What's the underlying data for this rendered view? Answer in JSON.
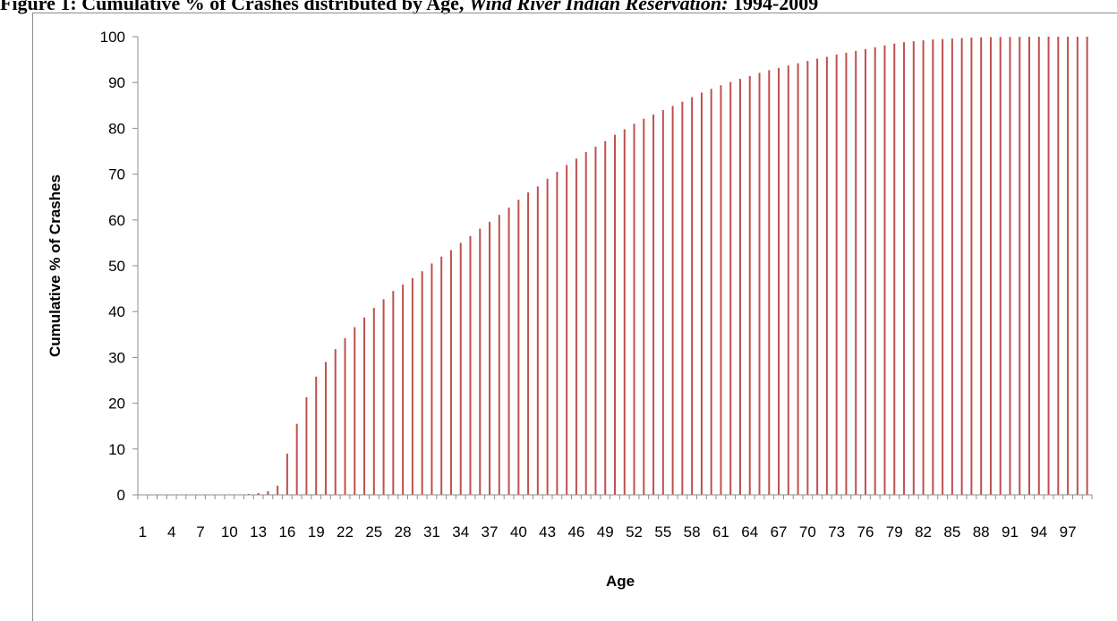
{
  "figure": {
    "title_main": "Figure 1: Cumulative % of Crashes distributed by Age, ",
    "title_italic": "Wind River Indian Reservation:",
    "title_tail": " 1994-2009"
  },
  "colors": {
    "bar": "#c0504d",
    "axis": "#8c8c8c"
  },
  "chart_data": {
    "type": "bar",
    "xlabel": "Age",
    "ylabel": "Cumulative % of Crashes",
    "ylim": [
      0,
      100
    ],
    "yticks": [
      0,
      10,
      20,
      30,
      40,
      50,
      60,
      70,
      80,
      90,
      100
    ],
    "xtick_labels": [
      "1",
      "4",
      "7",
      "10",
      "13",
      "16",
      "19",
      "22",
      "25",
      "28",
      "31",
      "34",
      "37",
      "40",
      "43",
      "46",
      "49",
      "52",
      "55",
      "58",
      "61",
      "64",
      "67",
      "70",
      "73",
      "76",
      "79",
      "82",
      "85",
      "88",
      "91",
      "94",
      "97"
    ],
    "grid": false,
    "legend": "none",
    "categories": [
      1,
      2,
      3,
      4,
      5,
      6,
      7,
      8,
      9,
      10,
      11,
      12,
      13,
      14,
      15,
      16,
      17,
      18,
      19,
      20,
      21,
      22,
      23,
      24,
      25,
      26,
      27,
      28,
      29,
      30,
      31,
      32,
      33,
      34,
      35,
      36,
      37,
      38,
      39,
      40,
      41,
      42,
      43,
      44,
      45,
      46,
      47,
      48,
      49,
      50,
      51,
      52,
      53,
      54,
      55,
      56,
      57,
      58,
      59,
      60,
      61,
      62,
      63,
      64,
      65,
      66,
      67,
      68,
      69,
      70,
      71,
      72,
      73,
      74,
      75,
      76,
      77,
      78,
      79,
      80,
      81,
      82,
      83,
      84,
      85,
      86,
      87,
      88,
      89,
      90,
      91,
      92,
      93,
      94,
      95,
      96,
      97,
      98,
      99
    ],
    "values": [
      0,
      0,
      0,
      0,
      0,
      0,
      0,
      0,
      0,
      0,
      0.1,
      0.2,
      0.4,
      0.8,
      2,
      9,
      15.5,
      21.3,
      25.8,
      29,
      31.8,
      34.2,
      36.6,
      38.7,
      40.8,
      42.7,
      44.5,
      45.9,
      47.3,
      48.8,
      50.5,
      52,
      53.4,
      55,
      56.5,
      58.1,
      59.6,
      61.1,
      62.7,
      64.4,
      66,
      67.3,
      69,
      70.5,
      72,
      73.4,
      74.8,
      76,
      77.2,
      78.6,
      79.8,
      81,
      82.1,
      83,
      84,
      84.9,
      85.8,
      86.8,
      87.8,
      88.6,
      89.4,
      90.1,
      90.8,
      91.4,
      92.1,
      92.7,
      93.2,
      93.7,
      94.2,
      94.7,
      95.2,
      95.6,
      96.1,
      96.5,
      96.9,
      97.3,
      97.7,
      98.1,
      98.5,
      98.8,
      99,
      99.2,
      99.4,
      99.5,
      99.6,
      99.7,
      99.8,
      99.85,
      99.9,
      99.93,
      99.95,
      99.97,
      99.98,
      99.99,
      100,
      100,
      100,
      100,
      100
    ]
  }
}
